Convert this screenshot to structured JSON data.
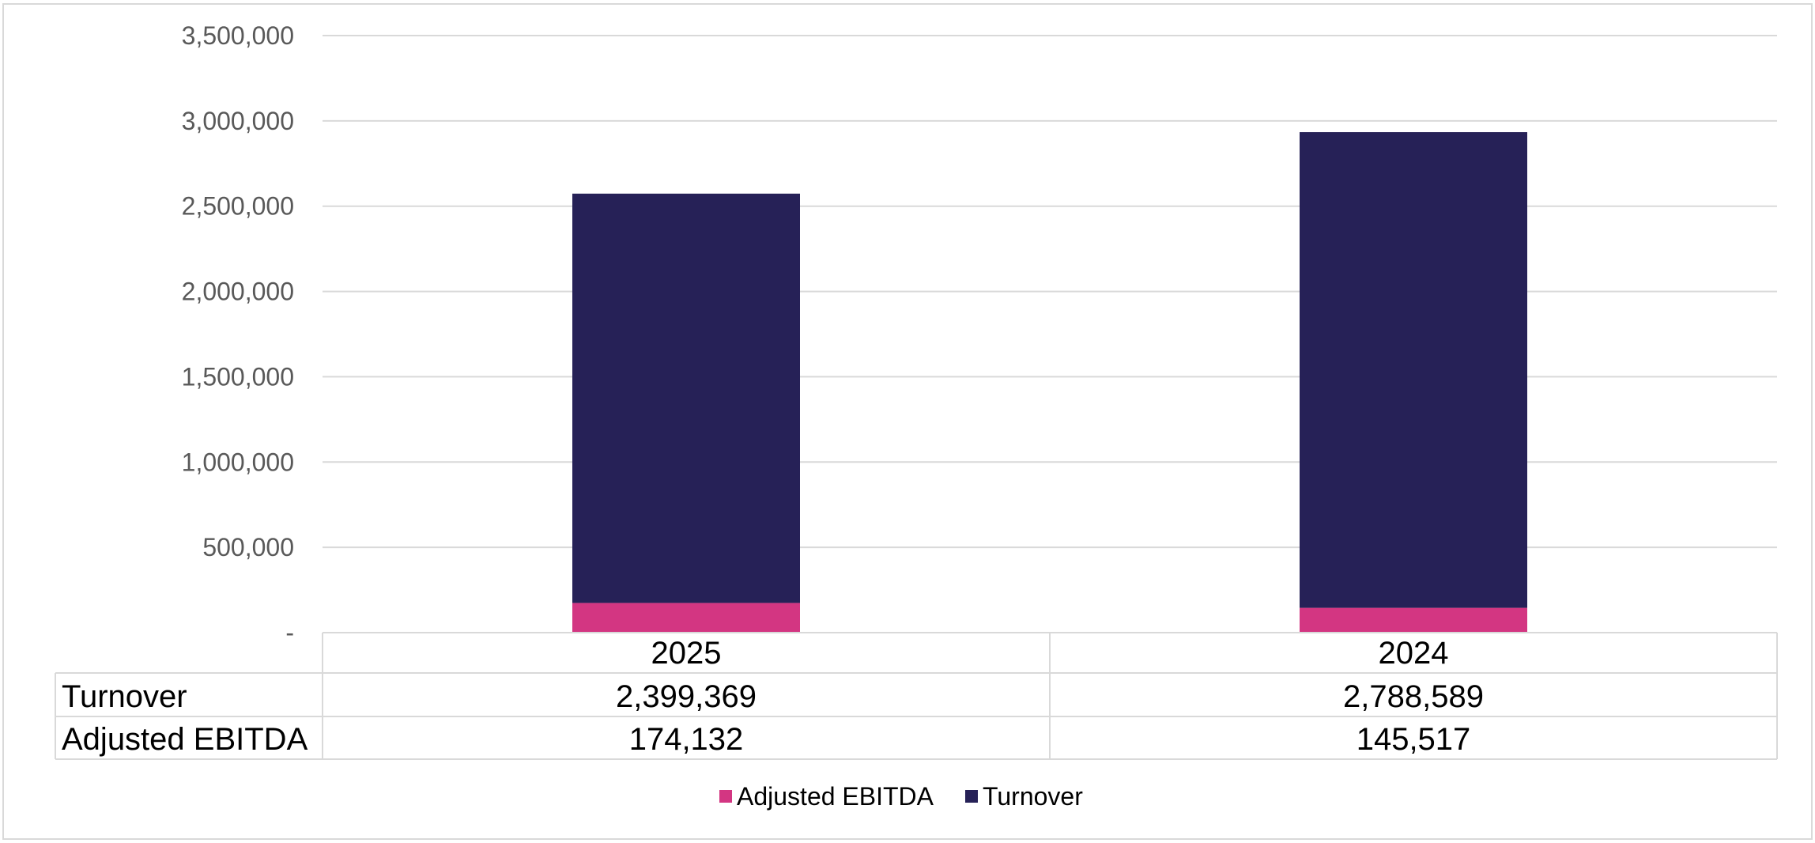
{
  "chart_data": {
    "type": "bar",
    "stacked": true,
    "categories": [
      "2025",
      "2024"
    ],
    "series": [
      {
        "name": "Adjusted EBITDA",
        "values": [
          174132,
          145517
        ],
        "color": "#d33682",
        "labels": [
          "174,132",
          "145,517"
        ]
      },
      {
        "name": "Turnover",
        "values": [
          2399369,
          2788589
        ],
        "color": "#262157",
        "labels": [
          "2,399,369",
          "2,788,589"
        ]
      }
    ],
    "table_rows": [
      "Turnover",
      "Adjusted EBITDA"
    ],
    "ylim": [
      0,
      3500000
    ],
    "yticks": [
      0,
      500000,
      1000000,
      1500000,
      2000000,
      2500000,
      3000000,
      3500000
    ],
    "ytick_labels": [
      "-",
      "500,000",
      "1,000,000",
      "1,500,000",
      "2,000,000",
      "2,500,000",
      "3,000,000",
      "3,500,000"
    ],
    "grid": true,
    "legend": "bottom-center",
    "grid_color": "#d9d9d9",
    "border_color": "#d9d9d9"
  }
}
